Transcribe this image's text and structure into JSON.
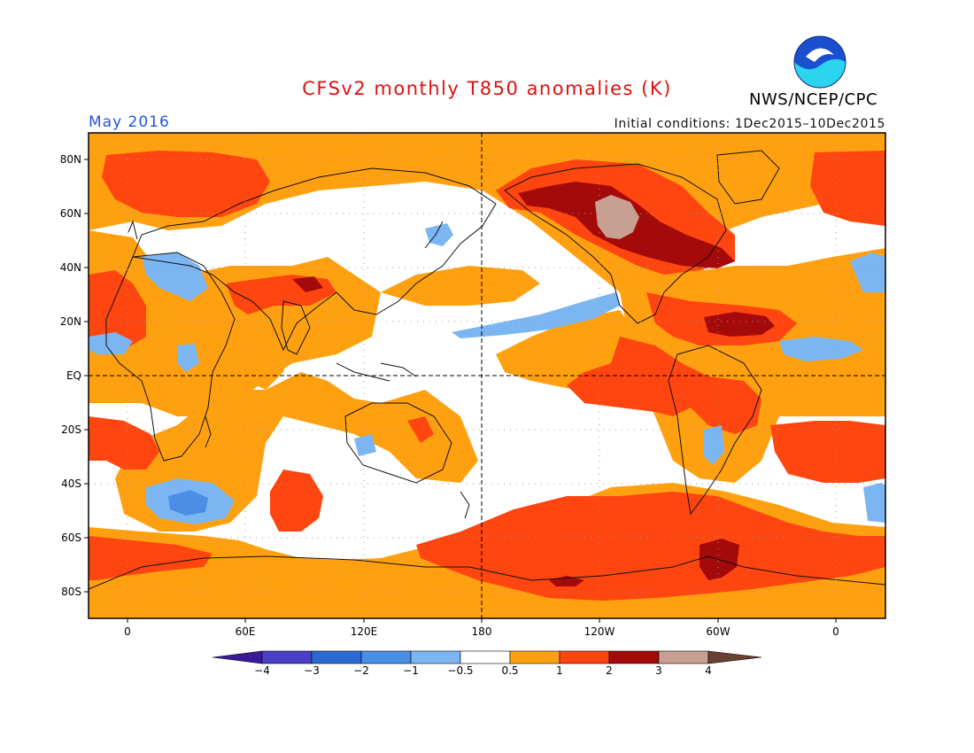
{
  "title": "CFSv2 monthly T850 anomalies (K)",
  "valid_month": "May 2016",
  "initial_conditions": "Initial conditions: 1Dec2015–10Dec2015",
  "org_label": "NWS/NCEP/CPC",
  "colors": {
    "title": "#dd1111",
    "month": "#2255dd",
    "bins": [
      "#3a1a9a",
      "#4a3fc8",
      "#2b6ad2",
      "#4a8ee6",
      "#7bb6f2",
      "#ffffff",
      "#ffa010",
      "#ff4510",
      "#a50a0a",
      "#c8a092",
      "#6a4032"
    ]
  },
  "map": {
    "lat_labels": [
      "80N",
      "60N",
      "40N",
      "20N",
      "EQ",
      "20S",
      "40S",
      "60S",
      "80S"
    ],
    "lon_labels": [
      "0",
      "60E",
      "120E",
      "180",
      "120W",
      "60W",
      "0"
    ]
  },
  "colorbar": {
    "labels": [
      "−4",
      "−3",
      "−2",
      "−1",
      "−0.5",
      "0.5",
      "1",
      "2",
      "3",
      "4"
    ]
  }
}
